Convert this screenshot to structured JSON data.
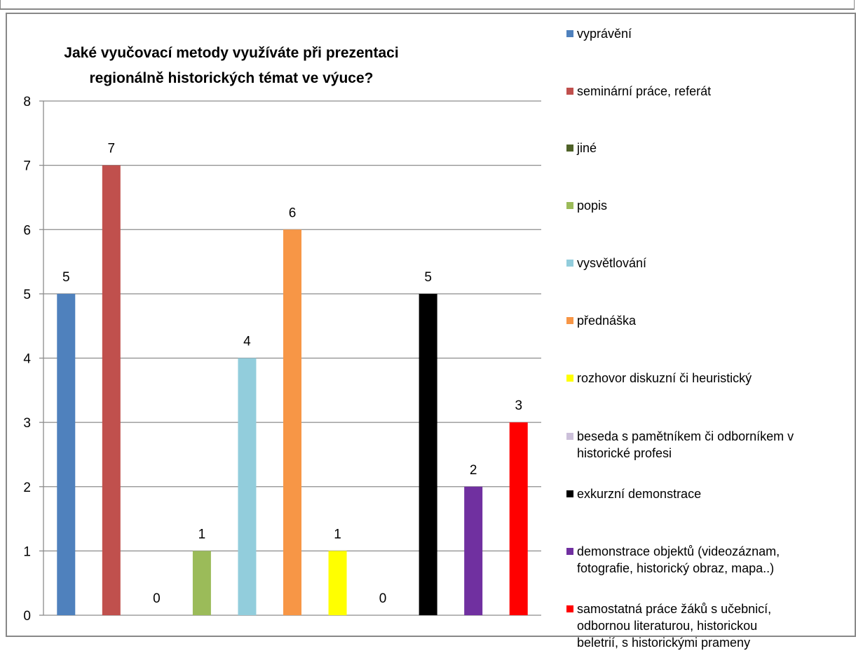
{
  "chart_data": {
    "type": "bar",
    "title": "Jaké vyučovací metody využíváte při prezentaci regionálně historických témat ve výuce?",
    "title_lines": [
      "Jaké vyučovací metody využíváte při prezentaci",
      "regionálně historických témat ve výuce?"
    ],
    "ylim": [
      0,
      8
    ],
    "y_ticks": [
      0,
      1,
      2,
      3,
      4,
      5,
      6,
      7,
      8
    ],
    "grid": true,
    "legend_position": "right",
    "data_labels": true,
    "series": [
      {
        "name": "vyprávění",
        "value": 5,
        "color": "#4F81BD"
      },
      {
        "name": "seminární práce, referát",
        "value": 7,
        "color": "#C0504D"
      },
      {
        "name": "jiné",
        "value": 0,
        "color": "#4F6228"
      },
      {
        "name": "popis",
        "value": 1,
        "color": "#9BBB59"
      },
      {
        "name": "vysvětlování",
        "value": 4,
        "color": "#92CDDC"
      },
      {
        "name": "přednáška",
        "value": 6,
        "color": "#F79646"
      },
      {
        "name": "rozhovor diskuzní či heuristický",
        "value": 1,
        "color": "#FFFF00"
      },
      {
        "name": "beseda s pamětníkem či odborníkem v historické profesi",
        "value": 0,
        "color": "#CCC0DA"
      },
      {
        "name": "exkurzní demonstrace",
        "value": 5,
        "color": "#000000"
      },
      {
        "name": "demonstrace objektů (videozáznam, fotografie, historický obraz, mapa..)",
        "value": 2,
        "color": "#7030A0"
      },
      {
        "name": "samostatná práce žáků s učebnicí, odbornou literaturou, historickou beletrií, s historickými prameny",
        "value": 3,
        "color": "#FF0000"
      }
    ],
    "legend_lines": [
      [
        "vyprávění"
      ],
      [
        "seminární práce, referát"
      ],
      [
        "jiné"
      ],
      [
        "popis"
      ],
      [
        "vysvětlování"
      ],
      [
        "přednáška"
      ],
      [
        "rozhovor diskuzní či heuristický"
      ],
      [
        "beseda s pamětníkem či odborníkem v",
        "historické profesi"
      ],
      [
        "exkurzní demonstrace"
      ],
      [
        "demonstrace objektů (videozáznam,",
        "fotografie, historický obraz, mapa..)"
      ],
      [
        "samostatná práce žáků s učebnicí,",
        "odbornou literaturou, historickou",
        "beletrií, s historickými prameny"
      ]
    ]
  }
}
